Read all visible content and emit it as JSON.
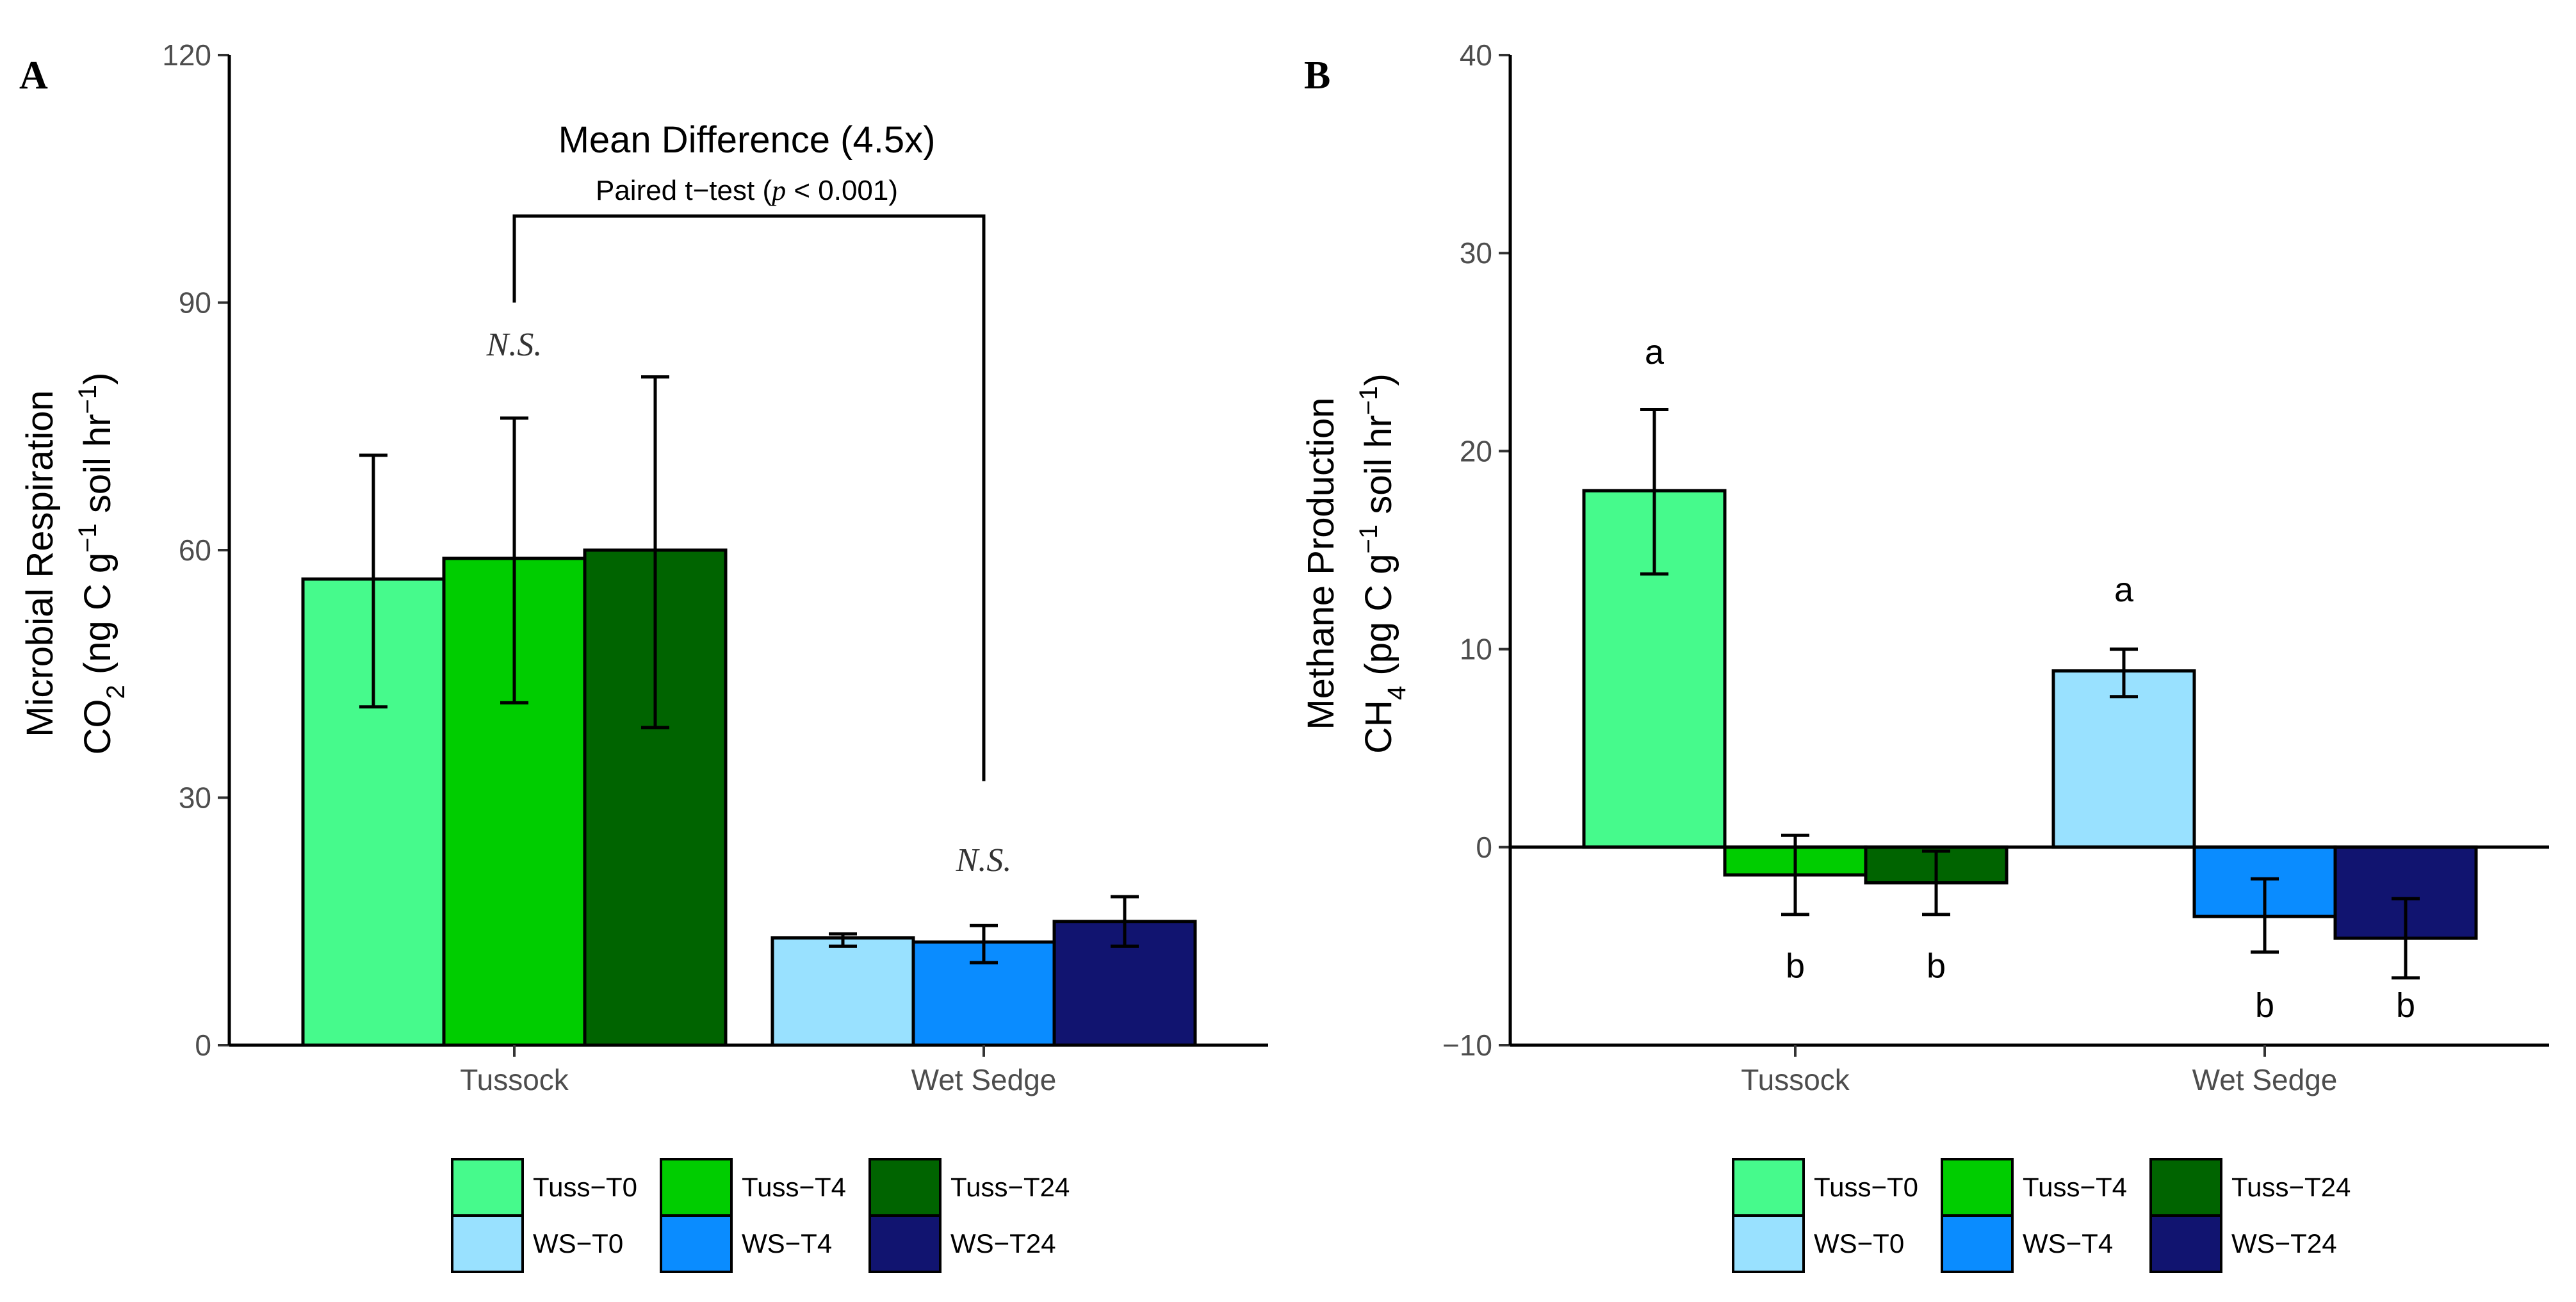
{
  "chart_data": [
    {
      "panel": "A",
      "type": "bar",
      "ylabel_line1": "Microbial Respiration",
      "ylabel_line2": {
        "pre": "CO",
        "sub": "2",
        "mid": " (ng C g",
        "sup1": "−1",
        "post": " soil hr",
        "sup2": "−1",
        "end": ")"
      },
      "ylim": [
        0,
        120
      ],
      "yticks": [
        0,
        30,
        60,
        90,
        120
      ],
      "ytick_labels": [
        "0",
        "30",
        "60",
        "90",
        "120"
      ],
      "categories": [
        "Tussock",
        "Wet Sedge"
      ],
      "series": [
        {
          "name": "Tuss-T0",
          "group": 0,
          "slot": 0,
          "value": 56.5,
          "err_low": 41,
          "err_high": 71.5
        },
        {
          "name": "Tuss-T4",
          "group": 0,
          "slot": 1,
          "value": 59,
          "err_low": 41.5,
          "err_high": 76
        },
        {
          "name": "Tuss-T24",
          "group": 0,
          "slot": 2,
          "value": 60,
          "err_low": 38.5,
          "err_high": 81
        },
        {
          "name": "WS-T0",
          "group": 1,
          "slot": 0,
          "value": 13,
          "err_low": 12,
          "err_high": 13.5
        },
        {
          "name": "WS-T4",
          "group": 1,
          "slot": 1,
          "value": 12.5,
          "err_low": 10,
          "err_high": 14.5
        },
        {
          "name": "WS-T24",
          "group": 1,
          "slot": 2,
          "value": 15,
          "err_low": 12,
          "err_high": 18
        }
      ],
      "annotations": {
        "ns_tussock": {
          "text": "N.S.",
          "y": 85
        },
        "ns_wetsedge": {
          "text": "N.S.",
          "y": 22.5
        },
        "bracket": {
          "top": 100.5,
          "left_end": 90,
          "right_end": 32
        },
        "title": "Mean Difference (4.5x)",
        "subtitle_pre": "Paired t−test (",
        "subtitle_p": "p",
        "subtitle_post": " < 0.001)"
      }
    },
    {
      "panel": "B",
      "type": "bar",
      "ylabel_line1": "Methane Production",
      "ylabel_line2": {
        "pre": "CH",
        "sub": "4",
        "mid": " (pg C g",
        "sup1": "−1",
        "post": " soil hr",
        "sup2": "−1",
        "end": ")"
      },
      "ylim": [
        -10,
        40
      ],
      "yticks": [
        -10,
        0,
        10,
        20,
        30,
        40
      ],
      "ytick_labels": [
        "−10",
        "0",
        "10",
        "20",
        "30",
        "40"
      ],
      "categories": [
        "Tussock",
        "Wet Sedge"
      ],
      "series": [
        {
          "name": "Tuss-T0",
          "group": 0,
          "slot": 0,
          "value": 18,
          "err_low": 13.8,
          "err_high": 22.1,
          "letter": "a",
          "letter_y": 25
        },
        {
          "name": "Tuss-T4",
          "group": 0,
          "slot": 1,
          "value": -1.4,
          "err_low": -3.4,
          "err_high": 0.6,
          "letter": "b",
          "letter_y": -6
        },
        {
          "name": "Tuss-T24",
          "group": 0,
          "slot": 2,
          "value": -1.8,
          "err_low": -3.4,
          "err_high": -0.2,
          "letter": "b",
          "letter_y": -6
        },
        {
          "name": "WS-T0",
          "group": 1,
          "slot": 0,
          "value": 8.9,
          "err_low": 7.6,
          "err_high": 10,
          "letter": "a",
          "letter_y": 13
        },
        {
          "name": "WS-T4",
          "group": 1,
          "slot": 1,
          "value": -3.5,
          "err_low": -5.3,
          "err_high": -1.6,
          "letter": "b",
          "letter_y": -8
        },
        {
          "name": "WS-T24",
          "group": 1,
          "slot": 2,
          "value": -4.6,
          "err_low": -6.6,
          "err_high": -2.6,
          "letter": "b",
          "letter_y": -8
        }
      ]
    }
  ],
  "panel_labels": [
    "A",
    "B"
  ],
  "legend": [
    {
      "label": "Tuss−T0",
      "color": "#46FA8C"
    },
    {
      "label": "Tuss−T4",
      "color": "#00CD00"
    },
    {
      "label": "Tuss−T24",
      "color": "#006400"
    },
    {
      "label": "WS−T0",
      "color": "#99E1FF"
    },
    {
      "label": "WS−T4",
      "color": "#0A8CFF"
    },
    {
      "label": "WS−T24",
      "color": "#111470"
    }
  ],
  "colors": {
    "Tuss-T0": "#46FA8C",
    "Tuss-T4": "#00CD00",
    "Tuss-T24": "#006400",
    "WS-T0": "#99E1FF",
    "WS-T4": "#0A8CFF",
    "WS-T24": "#111470",
    "tick_text": "#4d4d4d",
    "axis": "#000000"
  }
}
